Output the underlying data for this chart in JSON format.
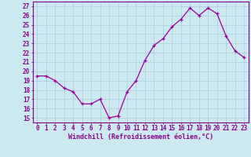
{
  "x": [
    0,
    1,
    2,
    3,
    4,
    5,
    6,
    7,
    8,
    9,
    10,
    11,
    12,
    13,
    14,
    15,
    16,
    17,
    18,
    19,
    20,
    21,
    22,
    23
  ],
  "y": [
    19.5,
    19.5,
    19.0,
    18.2,
    17.8,
    16.5,
    16.5,
    17.0,
    15.0,
    15.2,
    17.8,
    19.0,
    21.2,
    22.8,
    23.5,
    24.8,
    25.6,
    26.8,
    26.0,
    26.8,
    26.2,
    23.8,
    22.2,
    21.5
  ],
  "line_color": "#990099",
  "marker": "P",
  "bg_color": "#cce8f0",
  "grid_color": "#aaccdd",
  "xlabel": "Windchill (Refroidissement éolien,°C)",
  "ylabel_ticks": [
    15,
    16,
    17,
    18,
    19,
    20,
    21,
    22,
    23,
    24,
    25,
    26,
    27
  ],
  "ylim": [
    14.5,
    27.5
  ],
  "xlim": [
    -0.5,
    23.5
  ],
  "tick_color": "#880088",
  "label_color": "#880088",
  "tick_fontsize": 5.5,
  "xlabel_fontsize": 6.0,
  "lw": 0.9,
  "markersize": 2.5
}
